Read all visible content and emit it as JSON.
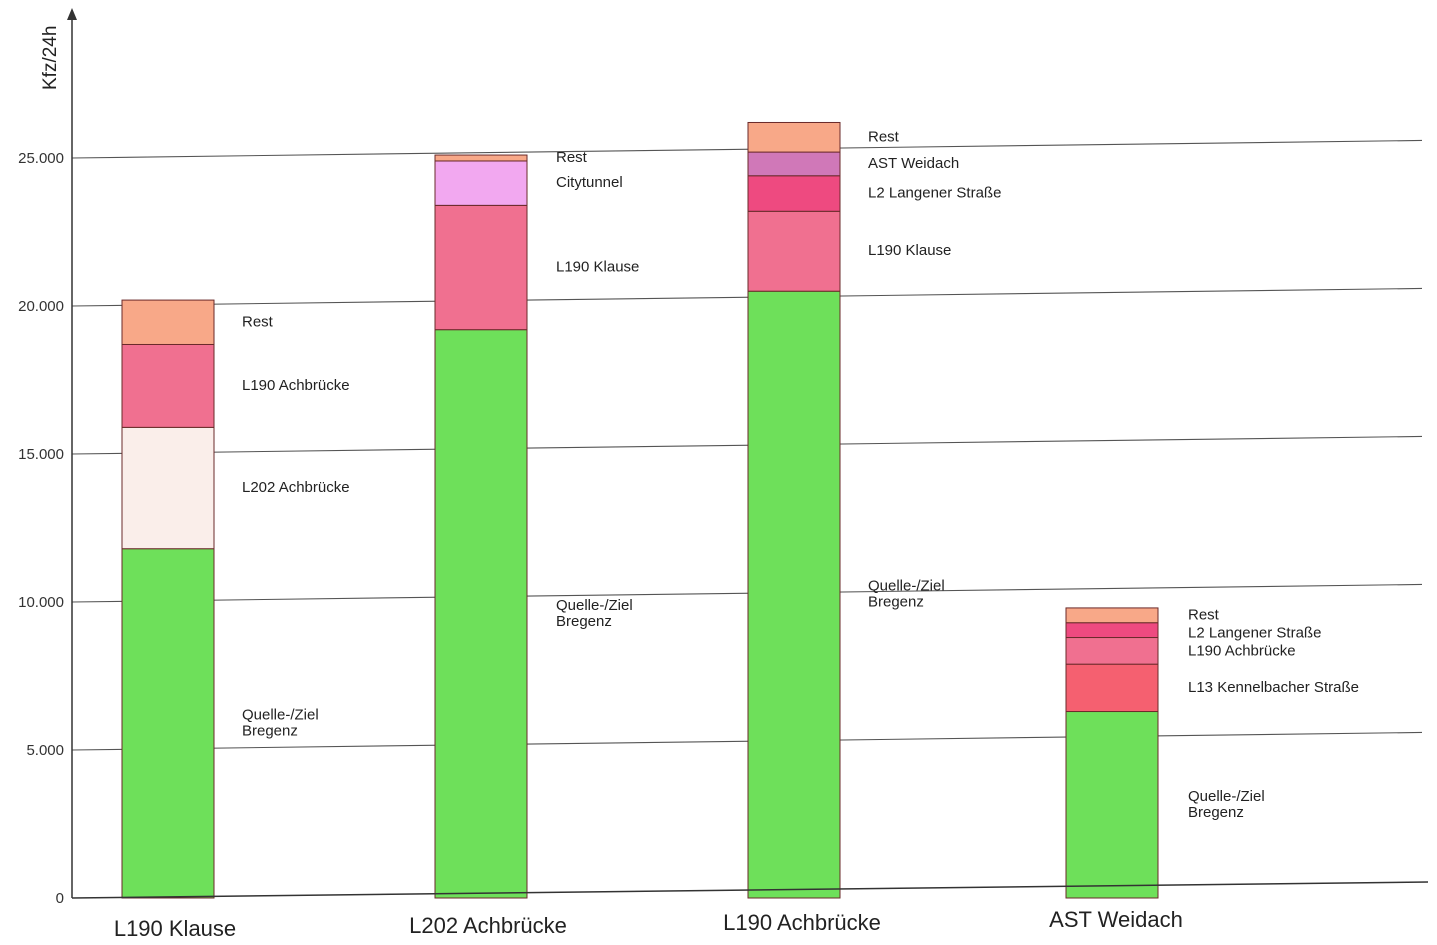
{
  "chart_data": {
    "type": "bar",
    "stacked": true,
    "ylabel": "Kfz/24h",
    "ylim": [
      0,
      29000
    ],
    "y_ticks": [
      0,
      5000,
      10000,
      15000,
      20000,
      25000
    ],
    "y_tick_labels": [
      "0",
      "5.000",
      "10.000",
      "15.000",
      "20.000",
      "25.000"
    ],
    "grid": true,
    "bars": [
      {
        "category": "L190 Klause",
        "segments": [
          {
            "label": [
              "Quelle-/Ziel",
              "Bregenz"
            ],
            "value": 11800,
            "color": "#6ee05a"
          },
          {
            "label": [
              "L202 Achbrücke"
            ],
            "value": 4100,
            "color": "#faeeea"
          },
          {
            "label": [
              "L190 Achbrücke"
            ],
            "value": 2800,
            "color": "#f07090"
          },
          {
            "label": [
              "Rest"
            ],
            "value": 1500,
            "color": "#f8a888"
          }
        ]
      },
      {
        "category": "L202 Achbrücke",
        "segments": [
          {
            "label": [
              "Quelle-/Ziel",
              "Bregenz"
            ],
            "value": 19200,
            "color": "#6ee05a"
          },
          {
            "label": [
              "L190 Klause"
            ],
            "value": 4200,
            "color": "#f07090"
          },
          {
            "label": [
              "Citytunnel"
            ],
            "value": 1500,
            "color": "#f2a8f0"
          },
          {
            "label": [
              "Rest"
            ],
            "value": 200,
            "color": "#f8a888"
          }
        ]
      },
      {
        "category": "L190 Achbrücke",
        "segments": [
          {
            "label": [
              "Quelle-/Ziel",
              "Bregenz"
            ],
            "value": 20500,
            "color": "#6ee05a"
          },
          {
            "label": [
              "L190 Klause"
            ],
            "value": 2700,
            "color": "#f07090"
          },
          {
            "label": [
              "L2 Langener Straße"
            ],
            "value": 1200,
            "color": "#ee4a80"
          },
          {
            "label": [
              "AST Weidach"
            ],
            "value": 800,
            "color": "#d078b8"
          },
          {
            "label": [
              "Rest"
            ],
            "value": 1000,
            "color": "#f8a888"
          }
        ]
      },
      {
        "category": "AST Weidach",
        "segments": [
          {
            "label": [
              "Quelle-/Ziel",
              "Bregenz"
            ],
            "value": 6300,
            "color": "#6ee05a"
          },
          {
            "label": [
              "L13 Kennelbacher Straße"
            ],
            "value": 1600,
            "color": "#f56070"
          },
          {
            "label": [
              "L190 Achbrücke"
            ],
            "value": 900,
            "color": "#f07090"
          },
          {
            "label": [
              "L2 Langener Straße"
            ],
            "value": 500,
            "color": "#ee4a80"
          },
          {
            "label": [
              "Rest"
            ],
            "value": 500,
            "color": "#f8a888"
          }
        ]
      }
    ]
  }
}
